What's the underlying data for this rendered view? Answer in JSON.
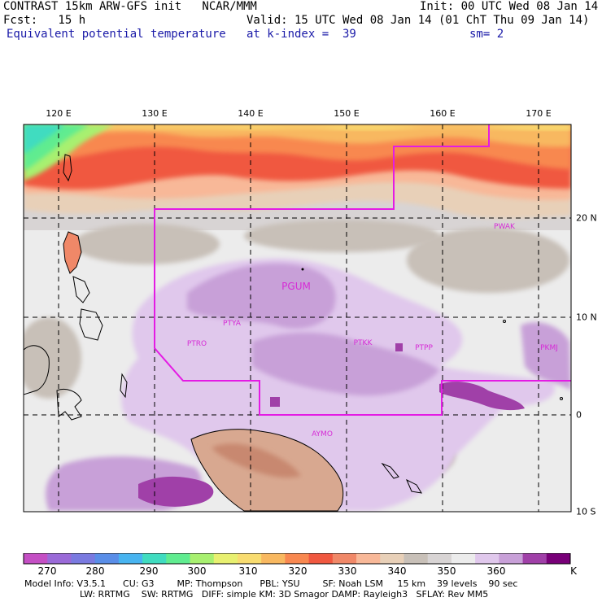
{
  "header": {
    "line1_left": "CONTRAST 15km ARW-GFS init   NCAR/MMM",
    "line1_right": "Init: 00 UTC Wed 08 Jan 14",
    "line2_left": "Fcst:   15 h",
    "line2_right": "Valid: 15 UTC Wed 08 Jan 14 (01 ChT Thu 09 Jan 14)",
    "line3_left": "Equivalent potential temperature",
    "line3_mid": "at k-index =  39",
    "line3_right": "sm= 2"
  },
  "map": {
    "lon_labels": [
      "120 E",
      "130 E",
      "140 E",
      "150 E",
      "160 E",
      "170 E"
    ],
    "lat_labels": [
      "20 N",
      "10 N",
      "0",
      "10 S"
    ],
    "stations": [
      {
        "id": "PWAK"
      },
      {
        "id": "PGUM"
      },
      {
        "id": "PTYA"
      },
      {
        "id": "PTRO"
      },
      {
        "id": "PTKK"
      },
      {
        "id": "PTPP"
      },
      {
        "id": "PKMJ"
      },
      {
        "id": "AYMO"
      }
    ],
    "boundary_color": "#e41be4"
  },
  "colorbar": {
    "unit": "K",
    "colors": [
      "#c44fc4",
      "#9a6ad8",
      "#7a7ae0",
      "#5a8ee8",
      "#48b4f0",
      "#40dcc0",
      "#60ec90",
      "#a8f070",
      "#e8f070",
      "#f8dc70",
      "#f8b860",
      "#f88850",
      "#f05840",
      "#f08868",
      "#f8b898",
      "#e8d0b8",
      "#c8c0b8",
      "#d8d4d4",
      "#ececec",
      "#e0c8ec",
      "#c8a0d8",
      "#a040a8",
      "#780078"
    ],
    "tick_labels": [
      "270",
      "280",
      "290",
      "300",
      "310",
      "320",
      "330",
      "340",
      "350",
      "360"
    ]
  },
  "footer": {
    "line1": "Model Info: V3.5.1      CU: G3        MP: Thompson      PBL: YSU        SF: Noah LSM     15 km    39 levels    90 sec",
    "line2": "LW: RRTMG    SW: RRTMG   DIFF: simple KM: 3D Smagor DAMP: Rayleigh3   SFLAY: Rev MM5"
  }
}
